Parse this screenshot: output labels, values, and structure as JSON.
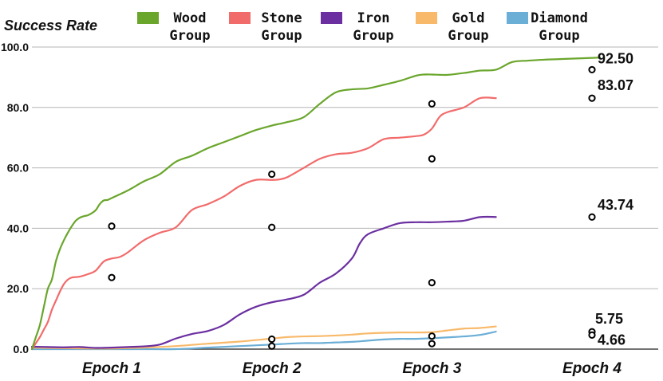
{
  "chart_data": {
    "type": "line",
    "ylabel": "Success Rate",
    "xlabel": "",
    "ylim": [
      0,
      100
    ],
    "yticks": [
      "0.0",
      "20.0",
      "40.0",
      "60.0",
      "80.0",
      "100.0"
    ],
    "categories": [
      "Epoch 1",
      "Epoch 2",
      "Epoch 3",
      "Epoch 4"
    ],
    "grid": true,
    "legend_position": "top",
    "series": [
      {
        "name": "Wood Group",
        "legend_lines": [
          "Wood",
          "Group"
        ],
        "color": "#6aa62c",
        "x": [
          0,
          0.05,
          0.1,
          0.15,
          0.2,
          0.25,
          0.3,
          0.35,
          0.4,
          0.45,
          0.5,
          0.55,
          0.6,
          0.65,
          0.7,
          0.75,
          0.8,
          0.85,
          0.9,
          0.95,
          1.0,
          1.1,
          1.2,
          1.3,
          1.4,
          1.5,
          1.6,
          1.7,
          1.8,
          1.9,
          2.0,
          2.05,
          2.1,
          2.2,
          2.3,
          2.4,
          2.5,
          2.6,
          2.7,
          2.8,
          2.9,
          2.95,
          3.0,
          3.05,
          3.1,
          3.2,
          3.3,
          3.4,
          3.5,
          3.6,
          3.7,
          3.8,
          3.9,
          4.0,
          4.05
        ],
        "y": [
          0,
          4,
          8,
          14,
          20,
          23,
          29,
          33,
          36,
          38.5,
          40.7,
          42.5,
          43.5,
          44,
          44.3,
          45,
          46,
          48,
          49.2,
          49.4,
          50,
          52.5,
          55.5,
          57.9,
          62,
          64,
          66.5,
          68.5,
          70.5,
          72.5,
          74,
          74.6,
          75.2,
          76.8,
          81.2,
          85,
          86,
          86.3,
          87.5,
          88.8,
          90.5,
          90.9,
          90.9,
          90.8,
          90.8,
          91.4,
          92.2,
          92.5,
          95,
          95.5,
          95.8,
          96,
          96.2,
          96.4,
          96.5
        ]
      },
      {
        "name": "Stone Group",
        "legend_lines": [
          "Stone",
          "Group"
        ],
        "color": "#f26b6b",
        "x": [
          0,
          0.05,
          0.1,
          0.15,
          0.2,
          0.25,
          0.3,
          0.35,
          0.4,
          0.45,
          0.5,
          0.6,
          0.7,
          0.8,
          0.9,
          1.0,
          1.05,
          1.1,
          1.2,
          1.3,
          1.4,
          1.5,
          1.6,
          1.7,
          1.8,
          1.9,
          2.0,
          2.05,
          2.1,
          2.2,
          2.3,
          2.4,
          2.5,
          2.6,
          2.7,
          2.8,
          2.9,
          2.95,
          3.0,
          3.05,
          3.1,
          3.2,
          3.3,
          3.4
        ],
        "y": [
          0,
          2,
          4,
          6.5,
          9,
          13,
          16,
          19,
          21.5,
          23,
          23.7,
          24,
          24.8,
          26,
          29,
          30,
          30.5,
          32,
          36,
          38.5,
          40.3,
          46,
          48,
          50.5,
          54,
          56,
          56,
          56.2,
          57,
          60,
          63,
          64.5,
          65,
          66.5,
          69.5,
          70,
          70.5,
          71,
          73,
          77,
          78.5,
          80,
          83.07,
          83.07
        ]
      },
      {
        "name": "Iron Group",
        "legend_lines": [
          "Iron",
          "Group"
        ],
        "color": "#6b2fa0",
        "x": [
          0,
          0.2,
          0.4,
          0.6,
          0.8,
          1.0,
          1.1,
          1.2,
          1.3,
          1.4,
          1.5,
          1.6,
          1.7,
          1.8,
          1.9,
          2.0,
          2.1,
          2.2,
          2.3,
          2.4,
          2.5,
          2.55,
          2.6,
          2.7,
          2.8,
          2.9,
          3.0,
          3.1,
          3.2,
          3.3,
          3.4
        ],
        "y": [
          0.8,
          0.7,
          0.6,
          0.7,
          0.4,
          0.5,
          0.7,
          0.9,
          1.5,
          3.5,
          5,
          6,
          8,
          11.5,
          14,
          15.5,
          16.5,
          18,
          22,
          25,
          30,
          35,
          38,
          40,
          41.7,
          42,
          42,
          42.2,
          42.5,
          43.7,
          43.74
        ]
      },
      {
        "name": "Gold Group",
        "legend_lines": [
          "Gold",
          "Group"
        ],
        "color": "#f8b96a",
        "x": [
          0,
          0.4,
          0.8,
          1.0,
          1.2,
          1.4,
          1.6,
          1.8,
          2.0,
          2.1,
          2.2,
          2.3,
          2.4,
          2.5,
          2.6,
          2.7,
          2.8,
          2.9,
          3.0,
          3.1,
          3.2,
          3.3,
          3.4
        ],
        "y": [
          0.5,
          0.3,
          0.2,
          0.2,
          0.5,
          1,
          1.8,
          2.5,
          3.5,
          4,
          4.2,
          4.3,
          4.5,
          4.8,
          5.2,
          5.4,
          5.5,
          5.5,
          5.6,
          6.2,
          6.8,
          7,
          7.5
        ]
      },
      {
        "name": "Diamond Group",
        "legend_lines": [
          "Diamond",
          "Group"
        ],
        "color": "#6baed6",
        "x": [
          0,
          0.4,
          0.8,
          1.0,
          1.2,
          1.4,
          1.6,
          1.8,
          2.0,
          2.1,
          2.2,
          2.3,
          2.4,
          2.5,
          2.6,
          2.7,
          2.8,
          2.9,
          3.0,
          3.1,
          3.2,
          3.3,
          3.4
        ],
        "y": [
          0,
          0,
          0,
          0,
          0,
          0,
          0.5,
          1,
          1.5,
          1.8,
          2,
          2,
          2.2,
          2.4,
          2.8,
          3.2,
          3.4,
          3.4,
          3.6,
          3.9,
          4.2,
          4.7,
          5.8
        ]
      }
    ],
    "markers": [
      {
        "x": 1.0,
        "y": 40.7
      },
      {
        "x": 1.0,
        "y": 23.7
      },
      {
        "x": 2.0,
        "y": 57.9
      },
      {
        "x": 2.0,
        "y": 40.3
      },
      {
        "x": 2.0,
        "y": 3.3
      },
      {
        "x": 2.0,
        "y": 1.0
      },
      {
        "x": 3.0,
        "y": 81.2
      },
      {
        "x": 3.0,
        "y": 63.0
      },
      {
        "x": 3.0,
        "y": 22.0
      },
      {
        "x": 3.0,
        "y": 4.3
      },
      {
        "x": 3.0,
        "y": 1.8
      },
      {
        "x": 4.0,
        "y": 92.5
      },
      {
        "x": 4.0,
        "y": 83.07
      },
      {
        "x": 4.0,
        "y": 43.74
      },
      {
        "x": 4.0,
        "y": 5.75
      },
      {
        "x": 4.0,
        "y": 4.66
      }
    ],
    "data_labels": [
      {
        "text": "92.50",
        "x": 4.0,
        "y": 92.5
      },
      {
        "text": "83.07",
        "x": 4.0,
        "y": 83.07
      },
      {
        "text": "43.74",
        "x": 4.0,
        "y": 43.74
      },
      {
        "text": "5.75",
        "x": 4.0,
        "y": 5.75
      },
      {
        "text": "4.66",
        "x": 4.0,
        "y": 4.66
      }
    ]
  }
}
